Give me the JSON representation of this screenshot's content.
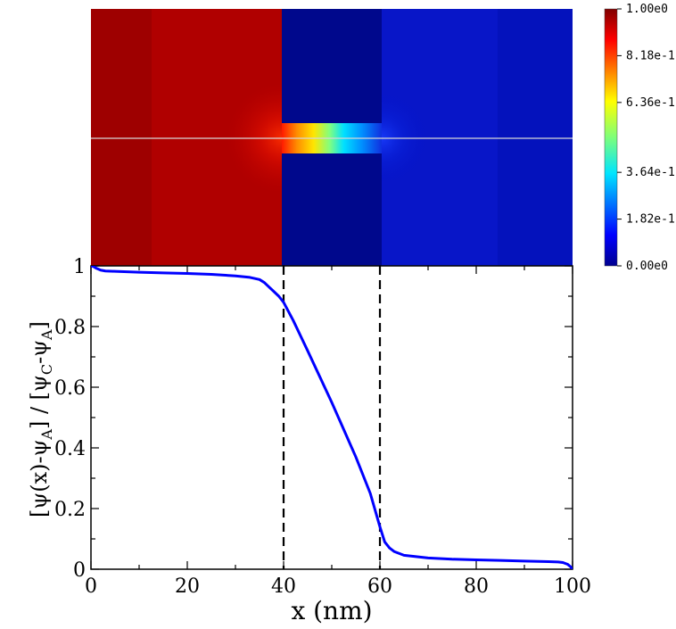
{
  "colorbar": {
    "tick_labels": [
      "1.00e0",
      "8.18e-1",
      "6.36e-1",
      "3.64e-1",
      "1.82e-1",
      "0.00e0"
    ],
    "tick_values": [
      1.0,
      0.818,
      0.636,
      0.364,
      0.182,
      0.0
    ],
    "colormap": "jet"
  },
  "chart_data": {
    "type": "line",
    "title": "",
    "xlabel": "x (nm)",
    "ylabel": "[ψ(x)-ψ_A] / [ψ_C-ψ_A]",
    "ylabel_parts": {
      "p1": "[ψ(x)-ψ",
      "s1": "A",
      "p2": "] / [ψ",
      "s2": "C",
      "p3": "-ψ",
      "s3": "A",
      "p4": "]"
    },
    "xlim": [
      0,
      100
    ],
    "ylim": [
      0,
      1
    ],
    "xticks": [
      0,
      20,
      40,
      60,
      80,
      100
    ],
    "xtick_labels": [
      "0",
      "20",
      "40",
      "60",
      "80",
      "100"
    ],
    "yticks": [
      0,
      0.2,
      0.4,
      0.6,
      0.8,
      1
    ],
    "ytick_labels": [
      "0",
      "0.2",
      "0.4",
      "0.6",
      "0.8",
      "1"
    ],
    "grid": false,
    "vlines": [
      40,
      60
    ],
    "series": [
      {
        "color": "#0000ff",
        "x": [
          0,
          0.5,
          1,
          2,
          3,
          5,
          10,
          15,
          20,
          25,
          30,
          33,
          35,
          36,
          37,
          38,
          39,
          40,
          42,
          45,
          50,
          55,
          58,
          59,
          60,
          61,
          62,
          63,
          65,
          70,
          75,
          80,
          85,
          90,
          95,
          97,
          98,
          99,
          99.6,
          100
        ],
        "y": [
          1.0,
          0.998,
          0.993,
          0.986,
          0.983,
          0.982,
          0.979,
          0.977,
          0.975,
          0.972,
          0.967,
          0.962,
          0.955,
          0.945,
          0.93,
          0.915,
          0.9,
          0.88,
          0.82,
          0.72,
          0.55,
          0.37,
          0.25,
          0.195,
          0.14,
          0.09,
          0.07,
          0.058,
          0.046,
          0.037,
          0.033,
          0.031,
          0.029,
          0.027,
          0.025,
          0.024,
          0.022,
          0.016,
          0.008,
          0.0
        ]
      }
    ]
  }
}
